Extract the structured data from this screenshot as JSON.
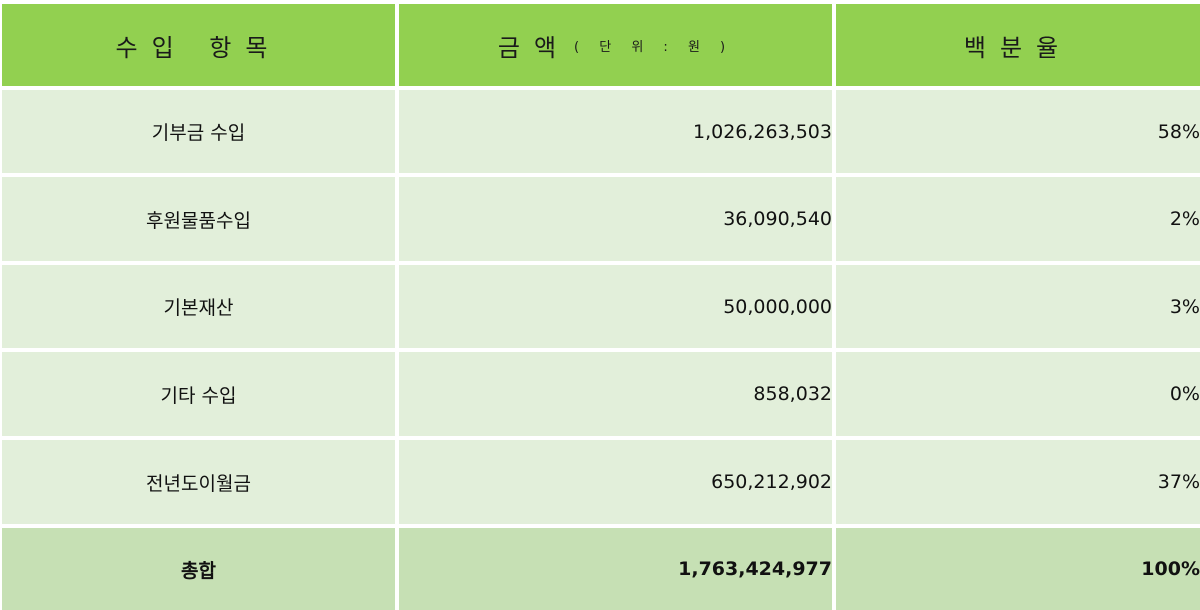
{
  "header": {
    "item": "수입 항목",
    "amount": "금액",
    "amount_unit": "( 단 위 : 원 )",
    "percent": "백분율"
  },
  "rows": [
    {
      "item": "기부금 수입",
      "amount": "1,026,263,503",
      "percent": "58%"
    },
    {
      "item": "후원물품수입",
      "amount": "36,090,540",
      "percent": "2%"
    },
    {
      "item": "기본재산",
      "amount": "50,000,000",
      "percent": "3%"
    },
    {
      "item": "기타 수입",
      "amount": "858,032",
      "percent": "0%"
    },
    {
      "item": "전년도이월금",
      "amount": "650,212,902",
      "percent": "37%"
    }
  ],
  "total": {
    "item": "총합",
    "amount": "1,763,424,977",
    "percent": "100%"
  },
  "colors": {
    "header": "#92d050",
    "body": "#e2efda",
    "total": "#c6e0b4"
  }
}
